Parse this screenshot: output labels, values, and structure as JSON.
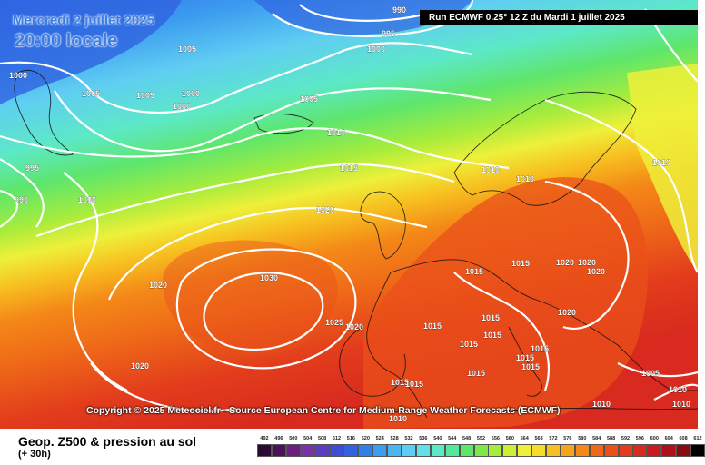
{
  "header": {
    "date": "Mercredi 2 juillet 2025",
    "time": "20:00 locale",
    "run": "Run ECMWF 0.25° 12 Z du Mardi 1 juillet 2025"
  },
  "copyright": "Copyright © 2025 Meteociel.fr - Source European Centre for Medium-Range Weather Forecasts (ECMWF)",
  "footer": {
    "title": "Geop. Z500 & pression au sol",
    "subtitle": "(+ 30h)"
  },
  "legend": {
    "values": [
      "492",
      "496",
      "500",
      "504",
      "508",
      "512",
      "516",
      "520",
      "524",
      "528",
      "532",
      "536",
      "540",
      "544",
      "548",
      "552",
      "556",
      "560",
      "564",
      "568",
      "572",
      "576",
      "580",
      "584",
      "588",
      "592",
      "596",
      "600",
      "604",
      "608",
      "612"
    ],
    "colors": [
      "#2b0a33",
      "#4a1257",
      "#6b1f7e",
      "#7a34a6",
      "#5c3dbf",
      "#3d4ed6",
      "#2f63e0",
      "#2f7fe8",
      "#3c9cf0",
      "#4cb6f2",
      "#5fcdf2",
      "#62e0e8",
      "#5de8c8",
      "#54e89a",
      "#5ee66c",
      "#7de84a",
      "#a6ec3c",
      "#cdef35",
      "#eef03a",
      "#f6dd2c",
      "#f7c020",
      "#f6a41a",
      "#f48818",
      "#ef6a18",
      "#e9501a",
      "#e23c1c",
      "#d82a1e",
      "#c91c1e",
      "#b0101a",
      "#8a0a12",
      "#000000"
    ]
  },
  "isobars": {
    "labels": [
      "990",
      "995",
      "1000",
      "1000",
      "1005",
      "1005",
      "1005",
      "1000",
      "1000",
      "1005",
      "1010",
      "1015",
      "1020",
      "1030",
      "1020",
      "1020",
      "1025",
      "1020",
      "995",
      "990",
      "1000",
      "1010",
      "1010",
      "1010",
      "1015",
      "1015",
      "1020",
      "1020",
      "1020",
      "1020",
      "1015",
      "1015",
      "1015",
      "1015",
      "1015",
      "1015",
      "1015",
      "1015",
      "1015",
      "1005",
      "1010",
      "1010",
      "1010",
      "1015",
      "1010"
    ]
  }
}
